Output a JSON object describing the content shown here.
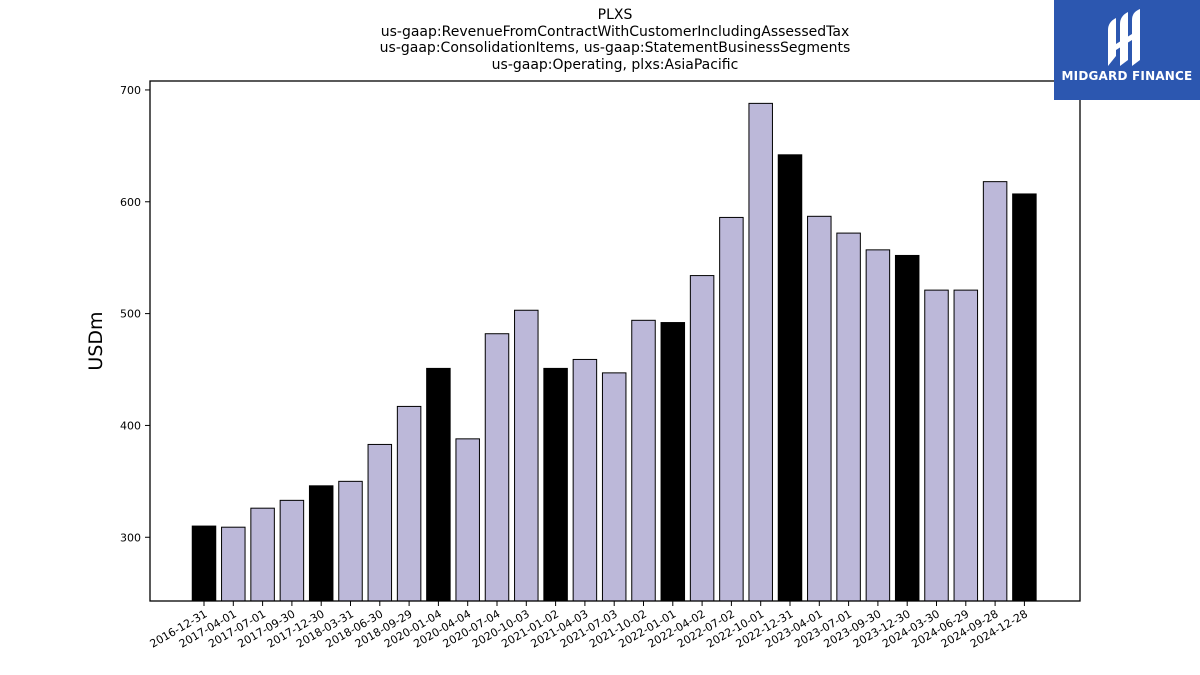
{
  "brand": {
    "logo_text": "MIDGARD FINANCE",
    "bg_color": "#2c57b0"
  },
  "titles": [
    "PLXS",
    "us-gaap:RevenueFromContractWithCustomerIncludingAssessedTax",
    "us-gaap:ConsolidationItems, us-gaap:StatementBusinessSegments",
    "us-gaap:Operating, plxs:AsiaPacific"
  ],
  "chart_data": {
    "type": "bar",
    "ylabel": "USDm",
    "xlabel": "",
    "ylim": [
      243,
      708
    ],
    "yticks": [
      300,
      400,
      500,
      600,
      700
    ],
    "grid": false,
    "colors": {
      "quarter": "#bcb8d9",
      "fiscal_year_end": "#000000"
    },
    "categories": [
      "2016-12-31",
      "2017-04-01",
      "2017-07-01",
      "2017-09-30",
      "2017-12-30",
      "2018-03-31",
      "2018-06-30",
      "2018-09-29",
      "2020-01-04",
      "2020-04-04",
      "2020-07-04",
      "2020-10-03",
      "2021-01-02",
      "2021-04-03",
      "2021-07-03",
      "2021-10-02",
      "2022-01-01",
      "2022-04-02",
      "2022-07-02",
      "2022-10-01",
      "2022-12-31",
      "2023-04-01",
      "2023-07-01",
      "2023-09-30",
      "2023-12-30",
      "2024-03-30",
      "2024-06-29",
      "2024-09-28",
      "2024-12-28"
    ],
    "values": [
      310,
      309,
      326,
      333,
      346,
      350,
      383,
      417,
      451,
      388,
      482,
      503,
      451,
      459,
      447,
      494,
      492,
      534,
      586,
      688,
      642,
      587,
      572,
      557,
      552,
      521,
      521,
      618,
      607
    ],
    "highlight": [
      true,
      false,
      false,
      false,
      true,
      false,
      false,
      false,
      true,
      false,
      false,
      false,
      true,
      false,
      false,
      false,
      true,
      false,
      false,
      false,
      true,
      false,
      false,
      false,
      true,
      false,
      false,
      false,
      true
    ]
  }
}
